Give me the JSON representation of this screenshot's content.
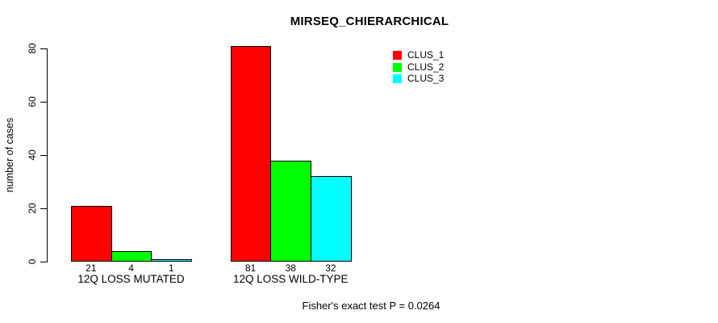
{
  "chart_data": {
    "type": "bar",
    "title": "MIRSEQ_CHIERARCHICAL",
    "xlabel": "",
    "ylabel": "number of cases",
    "categories": [
      "12Q LOSS MUTATED",
      "12Q LOSS WILD-TYPE"
    ],
    "series": [
      {
        "name": "CLUS_1",
        "color": "#ff0000",
        "values": [
          21,
          81
        ]
      },
      {
        "name": "CLUS_2",
        "color": "#00ff00",
        "values": [
          4,
          38
        ]
      },
      {
        "name": "CLUS_3",
        "color": "#00ffff",
        "values": [
          1,
          32
        ]
      }
    ],
    "bar_value_labels": [
      [
        "21",
        "4",
        "1"
      ],
      [
        "81",
        "38",
        "32"
      ]
    ],
    "yticks": [
      0,
      20,
      40,
      60,
      80
    ],
    "ylim": [
      0,
      81
    ],
    "grid": false,
    "legend_position": "top-right",
    "annotation": "Fisher's exact test P = 0.0264",
    "colors": {
      "foreground": "#000000",
      "background": "#ffffff"
    }
  }
}
